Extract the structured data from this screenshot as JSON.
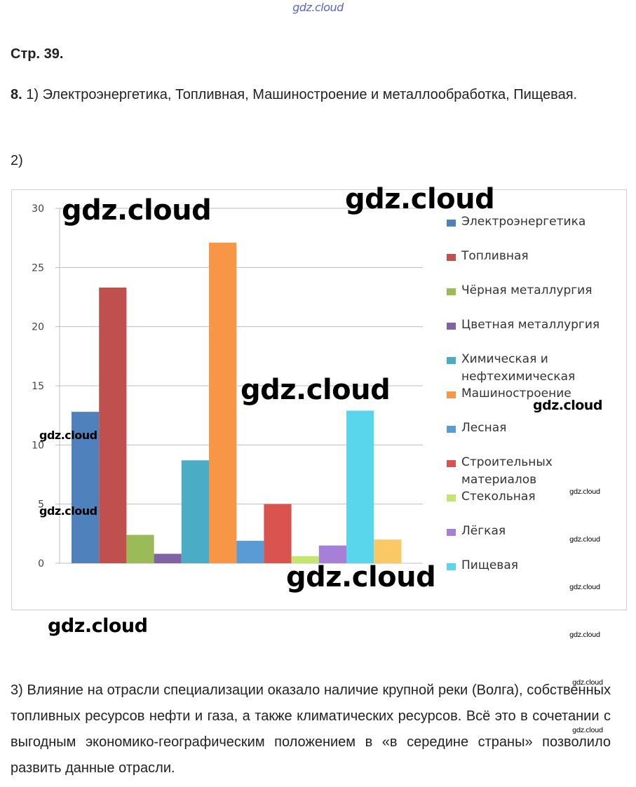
{
  "header": {
    "watermark": "gdz.cloud"
  },
  "page_title": "Стр. 39.",
  "task": {
    "number": "8.",
    "part1": "1) Электроэнергетика, Топливная, Машиностроение и металлообработка, Пищевая.",
    "part2_label": "2)",
    "part3": "3) Влияние на отрасли специализации оказало наличие крупной реки (Волга), собственных топливных ресурсов нефти и газа, а также климатических ресурсов. Всё это в сочетании с выгодным экономико-географическим положением в «в середине страны» позволило развить данные отрасли."
  },
  "watermark_text": "gdz.cloud",
  "chart_data": {
    "type": "bar",
    "title": "",
    "xlabel": "",
    "ylabel": "",
    "ylim": [
      0,
      30
    ],
    "yticks": [
      0,
      5,
      10,
      15,
      20,
      25,
      30
    ],
    "grid": true,
    "legend_position": "right",
    "series": [
      {
        "name": "Электроэнергетика",
        "value": 12.8,
        "color": "#4f81bd"
      },
      {
        "name": "Топливная",
        "value": 23.3,
        "color": "#c0504d"
      },
      {
        "name": "Чёрная металлургия",
        "value": 2.4,
        "color": "#9bbb59"
      },
      {
        "name": "Цветная металлургия",
        "value": 0.8,
        "color": "#8064a2"
      },
      {
        "name": "Химическая и нефтехимическая",
        "value": 8.7,
        "color": "#4bacc6"
      },
      {
        "name": "Машиностроение",
        "value": 27.1,
        "color": "#f79646"
      },
      {
        "name": "Лесная",
        "value": 1.9,
        "color": "#5b9bd5"
      },
      {
        "name": "Строительных материалов",
        "value": 5.0,
        "color": "#d9534f"
      },
      {
        "name": "Стекольная",
        "value": 0.6,
        "color": "#c3e66e"
      },
      {
        "name": "Лёгкая",
        "value": 1.5,
        "color": "#a680d6"
      },
      {
        "name": "Пищевая",
        "value": 12.9,
        "color": "#5ad6ec"
      },
      {
        "name": "",
        "value": 2.0,
        "color": "#fac864"
      }
    ]
  }
}
